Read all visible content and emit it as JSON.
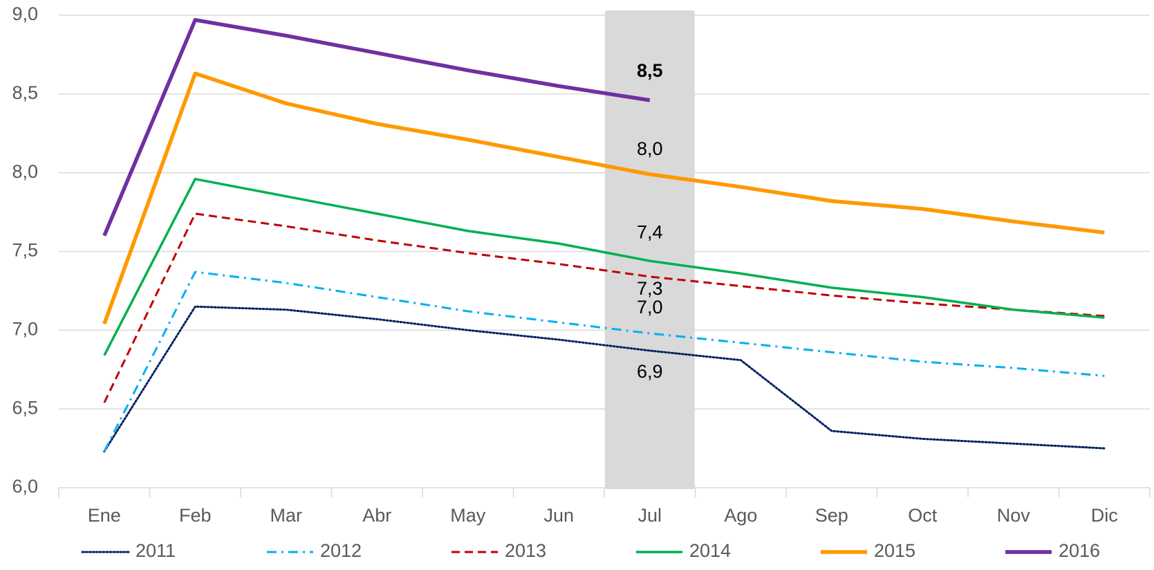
{
  "chart_data": {
    "type": "line",
    "categories": [
      "Ene",
      "Feb",
      "Mar",
      "Abr",
      "May",
      "Jun",
      "Jul",
      "Ago",
      "Sep",
      "Oct",
      "Nov",
      "Dic"
    ],
    "ylim": [
      6,
      9
    ],
    "yticks": [
      {
        "value": 6,
        "label": "6,0"
      },
      {
        "value": 6.5,
        "label": "6,5"
      },
      {
        "value": 7,
        "label": "7,0"
      },
      {
        "value": 7.5,
        "label": "7,5"
      },
      {
        "value": 8,
        "label": "8,0"
      },
      {
        "value": 8.5,
        "label": "8,5"
      },
      {
        "value": 9,
        "label": "9,0"
      }
    ],
    "grid": true,
    "legend": "bottom",
    "series": [
      {
        "name": "2011",
        "color": "#002060",
        "line_style": "dotted",
        "values": [
          6.23,
          7.15,
          7.13,
          7.07,
          7.0,
          6.94,
          6.87,
          6.81,
          6.36,
          6.31,
          6.28,
          6.25
        ],
        "value_labels": [
          null,
          null,
          null,
          null,
          null,
          null,
          "6,9",
          null,
          null,
          null,
          null,
          null
        ]
      },
      {
        "name": "2012",
        "color": "#00b0f0",
        "line_style": "dashdot",
        "values": [
          6.23,
          7.37,
          7.3,
          7.21,
          7.12,
          7.05,
          6.98,
          6.92,
          6.86,
          6.8,
          6.76,
          6.71
        ],
        "value_labels": [
          null,
          null,
          null,
          null,
          null,
          null,
          "7,0",
          null,
          null,
          null,
          null,
          null
        ]
      },
      {
        "name": "2013",
        "color": "#c00000",
        "line_style": "dashed",
        "values": [
          6.54,
          7.74,
          7.66,
          7.57,
          7.49,
          7.42,
          7.34,
          7.28,
          7.22,
          7.17,
          7.13,
          7.09
        ],
        "value_labels": [
          null,
          null,
          null,
          null,
          null,
          null,
          "7,3",
          null,
          null,
          null,
          null,
          null
        ]
      },
      {
        "name": "2014",
        "color": "#00b050",
        "line_style": "solid",
        "values": [
          6.84,
          7.96,
          7.85,
          7.74,
          7.63,
          7.55,
          7.44,
          7.36,
          7.27,
          7.21,
          7.13,
          7.08
        ],
        "value_labels": [
          null,
          null,
          null,
          null,
          null,
          null,
          "7,4",
          null,
          null,
          null,
          null,
          null
        ]
      },
      {
        "name": "2015",
        "color": "#ff9900",
        "line_style": "solid",
        "values": [
          7.04,
          8.63,
          8.44,
          8.31,
          8.21,
          8.1,
          7.99,
          7.91,
          7.82,
          7.77,
          7.69,
          7.62
        ],
        "value_labels": [
          null,
          null,
          null,
          null,
          null,
          null,
          "8,0",
          null,
          null,
          null,
          null,
          null
        ]
      },
      {
        "name": "2016",
        "color": "#7030a0",
        "line_style": "solid",
        "bold_labels": true,
        "values": [
          7.6,
          8.97,
          8.87,
          8.76,
          8.65,
          8.55,
          8.46,
          null,
          null,
          null,
          null,
          null
        ],
        "value_labels": [
          null,
          null,
          null,
          null,
          null,
          null,
          "8,5",
          null,
          null,
          null,
          null,
          null
        ]
      }
    ]
  }
}
